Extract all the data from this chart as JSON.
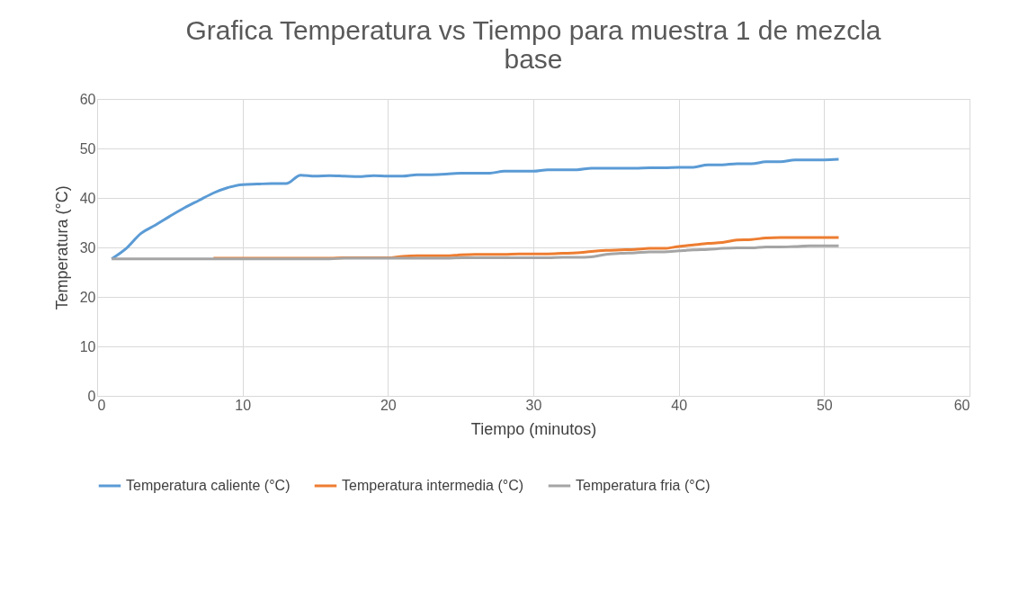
{
  "chart_data": {
    "type": "line",
    "title": "Grafica Temperatura vs Tiempo para muestra 1 de mezcla base",
    "xlabel": "Tiempo (minutos)",
    "ylabel": "Temperatura (°C)",
    "x": [
      1,
      2,
      3,
      4,
      5,
      6,
      7,
      8,
      9,
      10,
      11,
      12,
      13,
      14,
      15,
      16,
      17,
      18,
      19,
      20,
      21,
      22,
      23,
      24,
      25,
      26,
      27,
      28,
      29,
      30,
      31,
      32,
      33,
      34,
      35,
      36,
      37,
      38,
      39,
      40,
      41,
      42,
      43,
      44,
      45,
      46,
      47,
      48,
      49,
      50,
      51
    ],
    "series": [
      {
        "name": "Temperatura caliente (°C)",
        "color": "#5b9bd5",
        "values": [
          27.7,
          29.8,
          32.8,
          34.5,
          36.3,
          38,
          39.5,
          41,
          42.1,
          42.7,
          42.8,
          42.9,
          42.9,
          44.6,
          44.4,
          44.5,
          44.4,
          44.3,
          44.5,
          44.4,
          44.4,
          44.7,
          44.7,
          44.8,
          45,
          45,
          45,
          45.4,
          45.4,
          45.4,
          45.7,
          45.7,
          45.7,
          46,
          46,
          46,
          46,
          46.1,
          46.1,
          46.2,
          46.2,
          46.7,
          46.7,
          46.9,
          46.9,
          47.3,
          47.3,
          47.7,
          47.7,
          47.7,
          47.8
        ]
      },
      {
        "name": "Temperatura intermedia (°C)",
        "color": "#ed7d31",
        "values": [
          null,
          null,
          null,
          null,
          null,
          null,
          null,
          27.8,
          27.8,
          27.8,
          27.8,
          27.8,
          27.8,
          27.8,
          27.8,
          27.8,
          27.9,
          27.9,
          27.9,
          27.9,
          28.2,
          28.3,
          28.3,
          28.3,
          28.5,
          28.6,
          28.6,
          28.6,
          28.7,
          28.7,
          28.7,
          28.8,
          28.9,
          29.2,
          29.4,
          29.5,
          29.6,
          29.8,
          29.8,
          30.2,
          30.5,
          30.8,
          31,
          31.5,
          31.6,
          31.9,
          32,
          32,
          32,
          32,
          32
        ]
      },
      {
        "name": "Temperatura fria (°C)",
        "color": "#a5a5a5",
        "values": [
          27.7,
          27.7,
          27.7,
          27.7,
          27.7,
          27.7,
          27.7,
          27.7,
          27.7,
          27.7,
          27.7,
          27.7,
          27.7,
          27.7,
          27.7,
          27.7,
          27.8,
          27.8,
          27.8,
          27.8,
          27.8,
          27.8,
          27.8,
          27.8,
          27.9,
          27.9,
          27.9,
          27.9,
          27.9,
          27.9,
          27.9,
          28,
          28,
          28.1,
          28.6,
          28.8,
          28.9,
          29.1,
          29.1,
          29.3,
          29.5,
          29.6,
          29.8,
          29.9,
          29.9,
          30.1,
          30.1,
          30.2,
          30.3,
          30.3,
          30.3
        ]
      }
    ],
    "xlim": [
      0,
      60
    ],
    "xticks": [
      0,
      10,
      20,
      30,
      40,
      50,
      60
    ],
    "ylim": [
      0,
      60
    ],
    "yticks": [
      0,
      10,
      20,
      30,
      40,
      50,
      60
    ],
    "grid": true,
    "legend": "bottom",
    "marker": "none",
    "line_style": "solid"
  }
}
